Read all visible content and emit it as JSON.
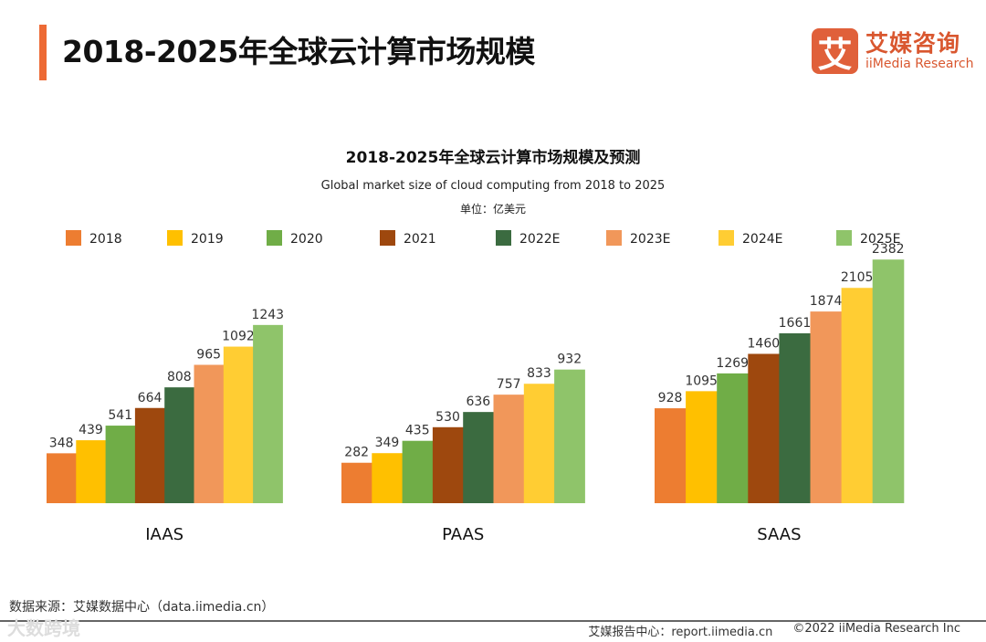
{
  "page_title": "2018-2025年全球云计算市场规模",
  "logo": {
    "mark": "艾",
    "cn": "艾媒咨询",
    "en": "iiMedia Research"
  },
  "chart_data": {
    "type": "bar",
    "title": "2018-2025年全球云计算市场规模及预测",
    "subtitle": "Global market size of cloud computing from 2018 to 2025",
    "unit": "单位：亿美元",
    "categories": [
      "IAAS",
      "PAAS",
      "SAAS"
    ],
    "series": [
      {
        "name": "2018",
        "color": "#ED7D31",
        "values": [
          348,
          282,
          928
        ]
      },
      {
        "name": "2019",
        "color": "#FFC000",
        "values": [
          439,
          349,
          1095
        ]
      },
      {
        "name": "2020",
        "color": "#70AD47",
        "values": [
          541,
          435,
          1269
        ]
      },
      {
        "name": "2021",
        "color": "#9E480E",
        "values": [
          664,
          530,
          1460
        ]
      },
      {
        "name": "2022E",
        "color": "#3B6B40",
        "values": [
          808,
          636,
          1661
        ]
      },
      {
        "name": "2023E",
        "color": "#F1975A",
        "values": [
          965,
          757,
          1874
        ]
      },
      {
        "name": "2024E",
        "color": "#FFCD33",
        "values": [
          1092,
          833,
          2105
        ]
      },
      {
        "name": "2025E",
        "color": "#8FC46A",
        "values": [
          1243,
          932,
          2382
        ]
      }
    ],
    "legend": "top",
    "grid": false
  },
  "footer": {
    "source": "数据来源：艾媒数据中心（data.iimedia.cn）",
    "watermark": "大数跨境",
    "report": "艾媒报告中心：report.iimedia.cn",
    "copyright": "©2022 iiMedia Research Inc"
  }
}
